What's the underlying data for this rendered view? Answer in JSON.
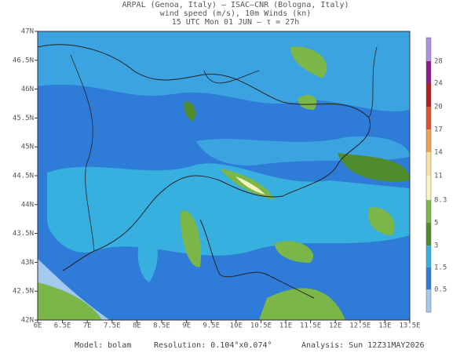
{
  "header": {
    "lines": [
      "ARPAL (Genoa, Italy)  –  ISAC–CNR (Bologna, Italy)",
      "wind speed (m/s), 10m Winds (kn)",
      "15 UTC Mon 01 JUN  –  τ = 27h"
    ]
  },
  "map": {
    "lat_labels": [
      "42N",
      "42.5N",
      "43N",
      "43.5N",
      "44N",
      "44.5N",
      "45N",
      "45.5N",
      "46N",
      "46.5N",
      "47N"
    ],
    "lon_labels": [
      "6E",
      "6.5E",
      "7E",
      "7.5E",
      "8E",
      "8.5E",
      "9E",
      "9.5E",
      "10E",
      "10.5E",
      "11E",
      "11.5E",
      "12E",
      "12.5E",
      "13E",
      "13.5E"
    ]
  },
  "colorbar": {
    "labels": [
      "0.5",
      "1.5",
      "3",
      "5",
      "8.3",
      "11",
      "14",
      "17",
      "20",
      "24",
      "28"
    ]
  },
  "footer": {
    "model": "Model: bolam",
    "resolution": "Resolution: 0.104°x0.074°",
    "analysis": "Analysis: Sun 12Z31MAY2026"
  }
}
